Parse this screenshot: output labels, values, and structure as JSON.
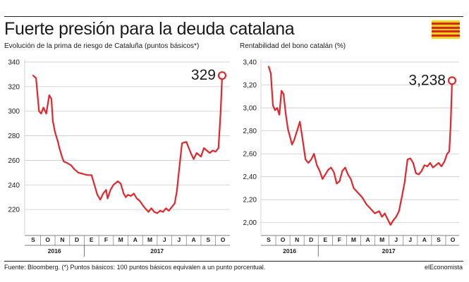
{
  "header": {
    "title": "Fuerte presión para la deuda catalana",
    "flag_colors": [
      "#f7d117",
      "#d52b1e"
    ]
  },
  "footer": {
    "source": "Fuente: Bloomberg. (*) Puntos básicos: 100 puntos básicos equivalen a un punto porcentual.",
    "brand": "elEconomista"
  },
  "colors": {
    "line": "#e4252c",
    "grid": "#c9c9c9",
    "text": "#1a1a1a"
  },
  "chart_data": [
    {
      "type": "line",
      "title": "Evolución de la prima de riesgo de Cataluña (puntos básicos*)",
      "ylim": [
        200,
        340
      ],
      "yticks": [
        220,
        240,
        260,
        280,
        300,
        320,
        340
      ],
      "ytick_labels": [
        "220",
        "240",
        "260",
        "280",
        "300",
        "320",
        "340"
      ],
      "months": [
        "S",
        "O",
        "N",
        "D",
        "E",
        "F",
        "M",
        "A",
        "M",
        "J",
        "J",
        "A",
        "S",
        "O"
      ],
      "years": [
        "2016",
        "2017"
      ],
      "grid": true,
      "last_value_label": "329",
      "series": [
        {
          "x": [
            0,
            0.2,
            0.4,
            0.55,
            0.7,
            0.9,
            1.1,
            1.25,
            1.35,
            1.5,
            1.7,
            1.8,
            1.9,
            2.0,
            2.1,
            2.3,
            2.6,
            2.8,
            3.1,
            3.4,
            3.7,
            4.0,
            4.2,
            4.4,
            4.6,
            4.8,
            5.0,
            5.1,
            5.3,
            5.5,
            5.8,
            6.0,
            6.2,
            6.35,
            6.5,
            6.7,
            6.9,
            7.1,
            7.3,
            7.6,
            7.9,
            8.1,
            8.3,
            8.5,
            8.7,
            8.9,
            9.1,
            9.3,
            9.5,
            9.7,
            9.85,
            10.0,
            10.2,
            10.5,
            10.8,
            11.0,
            11.2,
            11.5,
            11.7,
            11.9,
            12.1,
            12.3,
            12.5,
            12.7,
            12.85,
            12.95
          ],
          "values": [
            329,
            327,
            300,
            298,
            303,
            298,
            313,
            310,
            292,
            283,
            275,
            270,
            266,
            262,
            259,
            258,
            256,
            253,
            250,
            249,
            248,
            248,
            240,
            232,
            228,
            233,
            236,
            229,
            236,
            240,
            243,
            241,
            233,
            230,
            232,
            231,
            233,
            229,
            227,
            222,
            218,
            221,
            218,
            217,
            219,
            218,
            221,
            219,
            222,
            225,
            235,
            252,
            274,
            275,
            266,
            261,
            266,
            263,
            270,
            268,
            266,
            268,
            267,
            270,
            300,
            329
          ]
        }
      ]
    },
    {
      "type": "line",
      "title": "Rentabilidad del bono catalán (%)",
      "ylim": [
        1.9,
        3.4
      ],
      "yticks": [
        2.0,
        2.2,
        2.4,
        2.6,
        2.8,
        3.0,
        3.2,
        3.4
      ],
      "ytick_labels": [
        "2,00",
        "2,20",
        "2,40",
        "2,60",
        "2,80",
        "3,00",
        "3,20",
        "3,40"
      ],
      "months": [
        "S",
        "O",
        "N",
        "D",
        "E",
        "F",
        "M",
        "A",
        "M",
        "J",
        "J",
        "A",
        "S",
        "O"
      ],
      "years": [
        "2016",
        "2017"
      ],
      "grid": true,
      "last_value_label": "3,238",
      "series": [
        {
          "x": [
            0,
            0.15,
            0.3,
            0.45,
            0.6,
            0.75,
            0.9,
            1.05,
            1.2,
            1.35,
            1.5,
            1.65,
            1.8,
            2.0,
            2.2,
            2.4,
            2.6,
            2.8,
            3.0,
            3.2,
            3.4,
            3.6,
            3.8,
            4.0,
            4.2,
            4.4,
            4.6,
            4.8,
            5.0,
            5.2,
            5.4,
            5.6,
            5.8,
            6.0,
            6.3,
            6.6,
            6.9,
            7.2,
            7.5,
            7.8,
            8.0,
            8.2,
            8.4,
            8.6,
            8.8,
            9.0,
            9.2,
            9.4,
            9.6,
            9.8,
            10.0,
            10.2,
            10.4,
            10.6,
            10.8,
            11.0,
            11.2,
            11.4,
            11.6,
            11.8,
            12.0,
            12.2,
            12.4,
            12.6,
            12.75,
            12.85,
            12.95
          ],
          "values": [
            3.36,
            3.3,
            3.02,
            2.98,
            3.0,
            2.94,
            3.15,
            3.12,
            2.95,
            2.82,
            2.75,
            2.68,
            2.72,
            2.8,
            2.88,
            2.72,
            2.55,
            2.52,
            2.55,
            2.6,
            2.5,
            2.45,
            2.38,
            2.42,
            2.46,
            2.48,
            2.44,
            2.34,
            2.36,
            2.45,
            2.48,
            2.42,
            2.38,
            2.3,
            2.26,
            2.22,
            2.16,
            2.12,
            2.08,
            2.1,
            2.05,
            2.08,
            2.03,
            1.98,
            2.02,
            2.05,
            2.1,
            2.22,
            2.35,
            2.55,
            2.56,
            2.52,
            2.43,
            2.42,
            2.45,
            2.5,
            2.49,
            2.52,
            2.48,
            2.5,
            2.52,
            2.49,
            2.53,
            2.6,
            2.62,
            2.85,
            3.238
          ]
        }
      ]
    }
  ]
}
